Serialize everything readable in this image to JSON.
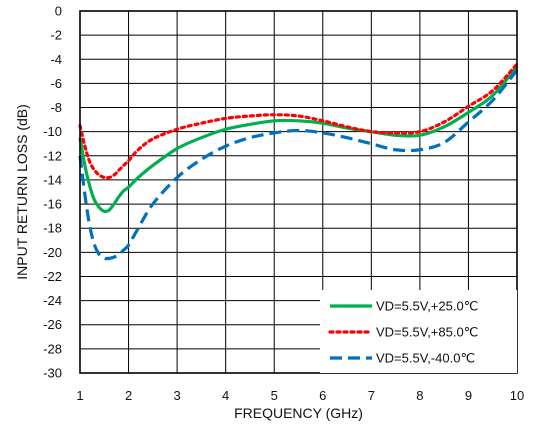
{
  "chart_data": {
    "type": "line",
    "title": "",
    "xlabel": "FREQUENCY (GHz)",
    "ylabel": "INPUT RETURN LOSS (dB)",
    "xlim": [
      1,
      10
    ],
    "ylim": [
      -30,
      0
    ],
    "x_ticks": [
      1,
      2,
      3,
      4,
      5,
      6,
      7,
      8,
      9,
      10
    ],
    "y_ticks": [
      0,
      -2,
      -4,
      -6,
      -8,
      -10,
      -12,
      -14,
      -16,
      -18,
      -20,
      -22,
      -24,
      -26,
      -28,
      -30
    ],
    "grid": true,
    "legend_position": "bottom-right",
    "series": [
      {
        "name": "VD=5.5V,+25.0℃",
        "color": "#00b050",
        "style": "solid",
        "x": [
          1.0,
          1.1,
          1.2,
          1.3,
          1.4,
          1.5,
          1.6,
          1.7,
          1.8,
          1.9,
          2.0,
          2.2,
          2.5,
          3.0,
          3.5,
          4.0,
          4.5,
          5.0,
          5.5,
          6.0,
          6.5,
          7.0,
          7.5,
          8.0,
          8.5,
          9.0,
          9.5,
          10.0
        ],
        "y": [
          -10.5,
          -12.8,
          -14.5,
          -15.7,
          -16.3,
          -16.6,
          -16.5,
          -16.0,
          -15.4,
          -14.9,
          -14.6,
          -13.8,
          -12.8,
          -11.4,
          -10.5,
          -9.8,
          -9.4,
          -9.1,
          -9.1,
          -9.3,
          -9.7,
          -10.0,
          -10.3,
          -10.3,
          -9.6,
          -8.4,
          -7.0,
          -4.6
        ]
      },
      {
        "name": "VD=5.5V,+85.0℃",
        "color": "#ff0000",
        "style": "dotted",
        "x": [
          1.0,
          1.1,
          1.2,
          1.3,
          1.4,
          1.5,
          1.6,
          1.7,
          1.8,
          1.9,
          2.0,
          2.2,
          2.5,
          3.0,
          3.5,
          4.0,
          4.5,
          5.0,
          5.5,
          6.0,
          6.5,
          7.0,
          7.5,
          8.0,
          8.5,
          9.0,
          9.5,
          10.0
        ],
        "y": [
          -9.5,
          -11.2,
          -12.5,
          -13.2,
          -13.6,
          -13.8,
          -13.8,
          -13.6,
          -13.2,
          -12.8,
          -12.4,
          -11.5,
          -10.6,
          -9.8,
          -9.3,
          -8.9,
          -8.7,
          -8.6,
          -8.7,
          -9.1,
          -9.6,
          -10.0,
          -10.1,
          -10.0,
          -9.2,
          -7.9,
          -6.6,
          -4.4
        ]
      },
      {
        "name": "VD=5.5V,-40.0℃",
        "color": "#0070c0",
        "style": "dashed",
        "x": [
          1.0,
          1.1,
          1.2,
          1.3,
          1.4,
          1.5,
          1.6,
          1.7,
          1.8,
          1.9,
          2.0,
          2.2,
          2.5,
          3.0,
          3.5,
          4.0,
          4.5,
          5.0,
          5.5,
          6.0,
          6.5,
          7.0,
          7.5,
          8.0,
          8.5,
          9.0,
          9.5,
          10.0
        ],
        "y": [
          -12.0,
          -15.2,
          -17.8,
          -19.4,
          -20.2,
          -20.5,
          -20.5,
          -20.4,
          -20.2,
          -19.8,
          -19.4,
          -18.0,
          -16.0,
          -13.8,
          -12.3,
          -11.2,
          -10.5,
          -10.1,
          -9.9,
          -10.1,
          -10.5,
          -11.0,
          -11.5,
          -11.5,
          -10.9,
          -9.2,
          -7.4,
          -4.9
        ]
      }
    ]
  }
}
